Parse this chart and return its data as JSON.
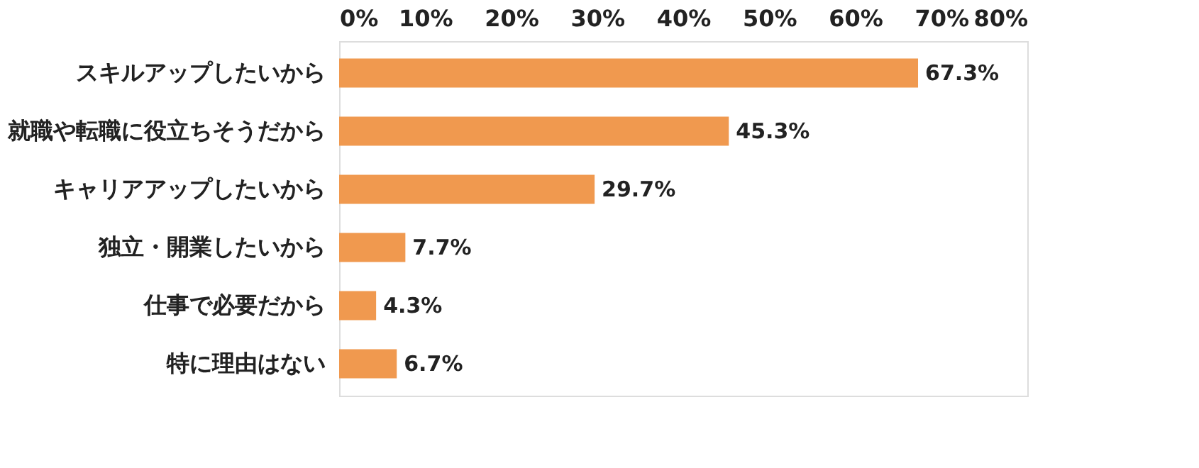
{
  "chart_data": {
    "type": "bar",
    "orientation": "horizontal",
    "categories": [
      "スキルアップしたいから",
      "就職や転職に役立ちそうだから",
      "キャリアアップしたいから",
      "独立・開業したいから",
      "仕事で必要だから",
      "特に理由はない"
    ],
    "values": [
      67.3,
      45.3,
      29.7,
      7.7,
      4.3,
      6.7
    ],
    "color": "#f0994f",
    "value_labels": [
      "67.3%",
      "45.3%",
      "29.7%",
      "7.7%",
      "4.3%",
      "6.7%"
    ],
    "xlim": [
      0,
      80
    ],
    "xticks": [
      {
        "value": 0,
        "label": "0%"
      },
      {
        "value": 10,
        "label": "10%"
      },
      {
        "value": 20,
        "label": "20%"
      },
      {
        "value": 30,
        "label": "30%"
      },
      {
        "value": 40,
        "label": "40%"
      },
      {
        "value": 50,
        "label": "50%"
      },
      {
        "value": 60,
        "label": "60%"
      },
      {
        "value": 70,
        "label": "70%"
      },
      {
        "value": 80,
        "label": "80%"
      }
    ],
    "grid": false
  }
}
